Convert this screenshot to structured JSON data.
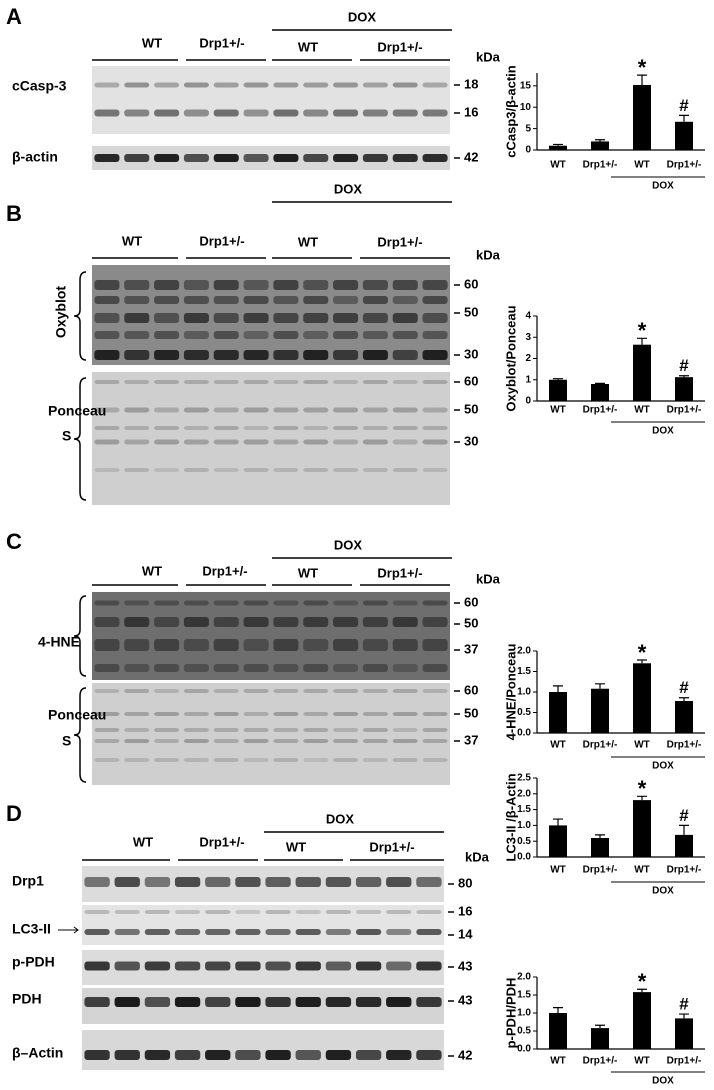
{
  "blot_panels": [
    {
      "letter": "A",
      "groups": [
        "WT",
        "Drp1+/-"
      ],
      "treatment": "DOX",
      "treated_groups": [
        "WT",
        "Drp1+/-"
      ],
      "unit": "kDa",
      "blots": [
        {
          "label": [
            "cCasp-3"
          ],
          "markers": [
            18,
            16
          ]
        },
        {
          "label": [
            "β-actin"
          ],
          "markers": [
            42
          ]
        }
      ]
    },
    {
      "letter": "B",
      "groups": [
        "WT",
        "Drp1+/-"
      ],
      "treatment": "DOX",
      "treated_groups": [
        "WT",
        "Drp1+/-"
      ],
      "unit": "kDa",
      "blots": [
        {
          "label": [
            "Oxyblot"
          ],
          "markers": [
            60,
            50,
            30
          ]
        },
        {
          "label": [
            "Ponceau",
            "S"
          ],
          "markers": [
            60,
            50,
            30
          ]
        }
      ]
    },
    {
      "letter": "C",
      "groups": [
        "WT",
        "Drp1+/-"
      ],
      "treatment": "DOX",
      "treated_groups": [
        "WT",
        "Drp1+/-"
      ],
      "unit": "kDa",
      "blots": [
        {
          "label": [
            "4-HNE"
          ],
          "markers": [
            60,
            50,
            37
          ]
        },
        {
          "label": [
            "Ponceau",
            "S"
          ],
          "markers": [
            60,
            50,
            37
          ]
        }
      ]
    },
    {
      "letter": "D",
      "groups": [
        "WT",
        "Drp1+/-"
      ],
      "treatment": "DOX",
      "treated_groups": [
        "WT",
        "Drp1+/-"
      ],
      "unit": "kDa",
      "blots": [
        {
          "label": [
            "Drp1"
          ],
          "markers": [
            80
          ]
        },
        {
          "label": [
            "LC3-II"
          ],
          "markers": [
            16,
            14
          ]
        },
        {
          "label": [
            "p-PDH"
          ],
          "markers": [
            43
          ]
        },
        {
          "label": [
            "PDH"
          ],
          "markers": [
            43
          ]
        },
        {
          "label": [
            "β–Actin"
          ],
          "markers": [
            42
          ]
        }
      ]
    }
  ],
  "chart_data": [
    {
      "type": "bar",
      "ylabel": "cCasp3/β-actin",
      "categories": [
        "WT",
        "Drp1+/-",
        "WT",
        "Drp1+/-"
      ],
      "group_label": "DOX",
      "values": [
        1.0,
        2.0,
        15.2,
        6.6
      ],
      "errors": [
        0.3,
        0.4,
        2.3,
        1.5
      ],
      "annotations": [
        null,
        null,
        "*",
        "#"
      ],
      "color": "#000000",
      "ylim": [
        0,
        18
      ],
      "yticks": [
        0,
        5,
        10,
        15
      ]
    },
    {
      "type": "bar",
      "ylabel": "Oxyblot/Ponceau",
      "categories": [
        "WT",
        "Drp1+/-",
        "WT",
        "Drp1+/-"
      ],
      "group_label": "DOX",
      "values": [
        1.0,
        0.8,
        2.65,
        1.12
      ],
      "errors": [
        0.05,
        0.03,
        0.3,
        0.07
      ],
      "annotations": [
        null,
        null,
        "*",
        "#"
      ],
      "color": "#000000",
      "ylim": [
        0,
        4
      ],
      "yticks": [
        0,
        1,
        2,
        3,
        4
      ]
    },
    {
      "type": "bar",
      "ylabel": "4-HNE/Ponceau",
      "categories": [
        "WT",
        "Drp1+/-",
        "WT",
        "Drp1+/-"
      ],
      "group_label": "DOX",
      "values": [
        1.0,
        1.08,
        1.7,
        0.78
      ],
      "errors": [
        0.15,
        0.12,
        0.08,
        0.08
      ],
      "annotations": [
        null,
        null,
        "*",
        "#"
      ],
      "color": "#000000",
      "ylim": [
        0,
        2
      ],
      "yticks": [
        {
          "value": 0,
          "label": "0.0"
        },
        0.5,
        {
          "value": 1,
          "label": "1.0"
        },
        1.5,
        {
          "value": 2,
          "label": "2.0"
        }
      ]
    },
    {
      "type": "bar",
      "ylabel": "LC3-II /β-Actin",
      "categories": [
        "WT",
        "Drp1+/-",
        "WT",
        "Drp1+/-"
      ],
      "group_label": "DOX",
      "values": [
        1.0,
        0.6,
        1.8,
        0.7
      ],
      "errors": [
        0.2,
        0.1,
        0.12,
        0.3
      ],
      "annotations": [
        null,
        null,
        "*",
        "#"
      ],
      "color": "#000000",
      "ylim": [
        0,
        2.5
      ],
      "yticks": [
        {
          "value": 0,
          "label": "0.0"
        },
        0.5,
        {
          "value": 1,
          "label": "1.0"
        },
        1.5,
        {
          "value": 2,
          "label": "2.0"
        },
        2.5
      ]
    },
    {
      "type": "bar",
      "ylabel": "p-PDH/PDH",
      "categories": [
        "WT",
        "Drp1+/-",
        "WT",
        "Drp1+/-"
      ],
      "group_label": "DOX",
      "values": [
        1.0,
        0.58,
        1.58,
        0.85
      ],
      "errors": [
        0.15,
        0.08,
        0.08,
        0.12
      ],
      "annotations": [
        null,
        null,
        "*",
        "#"
      ],
      "color": "#000000",
      "ylim": [
        0,
        2
      ],
      "yticks": [
        {
          "value": 0,
          "label": "0.0"
        },
        0.5,
        {
          "value": 1,
          "label": "1.0"
        },
        1.5,
        {
          "value": 2,
          "label": "2.0"
        }
      ]
    }
  ]
}
